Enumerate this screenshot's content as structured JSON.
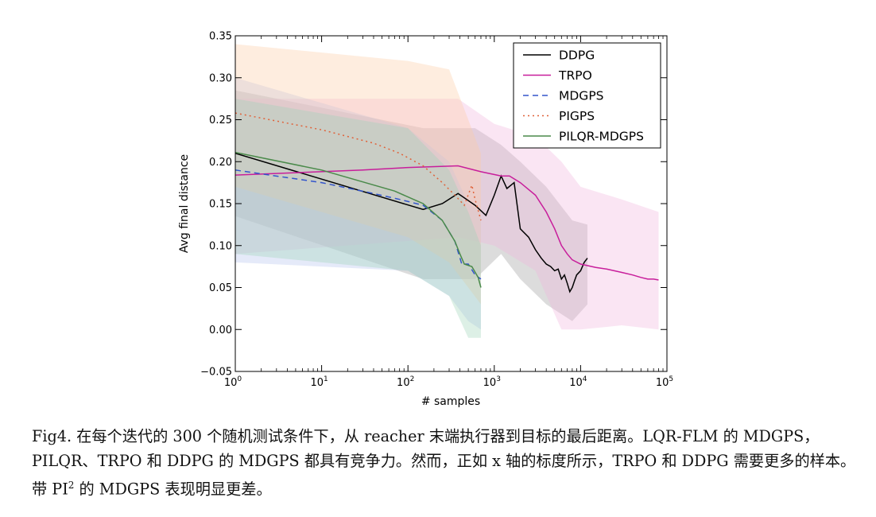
{
  "chart_data": {
    "type": "line",
    "title": "",
    "xlabel": "# samples",
    "ylabel": "Avg final distance",
    "xscale": "log",
    "xlim": [
      1,
      100000
    ],
    "ylim": [
      -0.05,
      0.35
    ],
    "grid": false,
    "legend_position": "top-right",
    "x_tick_labels": [
      {
        "base": "10",
        "exp": "0"
      },
      {
        "base": "10",
        "exp": "1"
      },
      {
        "base": "10",
        "exp": "2"
      },
      {
        "base": "10",
        "exp": "3"
      },
      {
        "base": "10",
        "exp": "4"
      },
      {
        "base": "10",
        "exp": "5"
      }
    ],
    "y_tick_labels": [
      "−0.05",
      "0.00",
      "0.05",
      "0.10",
      "0.15",
      "0.20",
      "0.25",
      "0.30",
      "0.35"
    ],
    "series": [
      {
        "name": "DDPG",
        "color": "#000000",
        "style": "solid",
        "band_color": "#9a9a9a",
        "points": [
          [
            1,
            0.21
          ],
          [
            150,
            0.143
          ],
          [
            250,
            0.15
          ],
          [
            380,
            0.162
          ],
          [
            600,
            0.148
          ],
          [
            800,
            0.136
          ],
          [
            1000,
            0.16
          ],
          [
            1200,
            0.183
          ],
          [
            1400,
            0.168
          ],
          [
            1700,
            0.175
          ],
          [
            2000,
            0.12
          ],
          [
            2500,
            0.11
          ],
          [
            3000,
            0.095
          ],
          [
            3500,
            0.085
          ],
          [
            4000,
            0.078
          ],
          [
            4500,
            0.075
          ],
          [
            5000,
            0.07
          ],
          [
            5500,
            0.072
          ],
          [
            6000,
            0.06
          ],
          [
            6500,
            0.065
          ],
          [
            7000,
            0.055
          ],
          [
            7500,
            0.045
          ],
          [
            8000,
            0.05
          ],
          [
            8500,
            0.058
          ],
          [
            9000,
            0.065
          ],
          [
            10000,
            0.07
          ],
          [
            11000,
            0.08
          ],
          [
            12000,
            0.085
          ]
        ],
        "band_points": [
          [
            1,
            0.285,
            0.135
          ],
          [
            150,
            0.24,
            0.06
          ],
          [
            600,
            0.24,
            0.06
          ],
          [
            1200,
            0.22,
            0.09
          ],
          [
            2000,
            0.2,
            0.06
          ],
          [
            4000,
            0.17,
            0.03
          ],
          [
            8000,
            0.13,
            0.01
          ],
          [
            12000,
            0.125,
            0.03
          ]
        ]
      },
      {
        "name": "TRPO",
        "color": "#c81e9b",
        "style": "solid",
        "band_color": "#f2b5de",
        "points": [
          [
            1,
            0.184
          ],
          [
            30,
            0.19
          ],
          [
            100,
            0.193
          ],
          [
            380,
            0.195
          ],
          [
            700,
            0.188
          ],
          [
            1200,
            0.183
          ],
          [
            1500,
            0.183
          ],
          [
            2000,
            0.175
          ],
          [
            3000,
            0.16
          ],
          [
            4000,
            0.14
          ],
          [
            5000,
            0.12
          ],
          [
            6000,
            0.1
          ],
          [
            7000,
            0.09
          ],
          [
            8000,
            0.083
          ],
          [
            10000,
            0.078
          ],
          [
            15000,
            0.074
          ],
          [
            20000,
            0.072
          ],
          [
            30000,
            0.068
          ],
          [
            40000,
            0.065
          ],
          [
            50000,
            0.062
          ],
          [
            60000,
            0.06
          ],
          [
            70000,
            0.06
          ],
          [
            80000,
            0.059
          ]
        ],
        "band_points": [
          [
            1,
            0.275,
            0.09
          ],
          [
            380,
            0.275,
            0.11
          ],
          [
            1000,
            0.245,
            0.1
          ],
          [
            3000,
            0.23,
            0.07
          ],
          [
            6000,
            0.2,
            0.0
          ],
          [
            10000,
            0.17,
            0.0
          ],
          [
            30000,
            0.155,
            0.005
          ],
          [
            80000,
            0.14,
            0.0
          ]
        ]
      },
      {
        "name": "MDGPS",
        "color": "#3355cc",
        "style": "dashed",
        "band_color": "#b4c2ee",
        "points": [
          [
            1,
            0.19
          ],
          [
            10,
            0.175
          ],
          [
            40,
            0.162
          ],
          [
            80,
            0.155
          ],
          [
            150,
            0.148
          ],
          [
            250,
            0.13
          ],
          [
            350,
            0.105
          ],
          [
            420,
            0.078
          ],
          [
            500,
            0.078
          ],
          [
            600,
            0.065
          ],
          [
            700,
            0.06
          ]
        ],
        "band_points": [
          [
            1,
            0.3,
            0.08
          ],
          [
            100,
            0.24,
            0.07
          ],
          [
            300,
            0.2,
            0.04
          ],
          [
            500,
            0.15,
            0.01
          ],
          [
            700,
            0.14,
            0.0
          ]
        ]
      },
      {
        "name": "PIGPS",
        "color": "#e0623a",
        "style": "dotted",
        "band_color": "#fbcaa4",
        "points": [
          [
            1,
            0.258
          ],
          [
            10,
            0.238
          ],
          [
            40,
            0.222
          ],
          [
            80,
            0.21
          ],
          [
            150,
            0.195
          ],
          [
            250,
            0.175
          ],
          [
            350,
            0.16
          ],
          [
            450,
            0.148
          ],
          [
            550,
            0.172
          ],
          [
            600,
            0.155
          ],
          [
            700,
            0.13
          ]
        ],
        "band_points": [
          [
            1,
            0.34,
            0.17
          ],
          [
            100,
            0.32,
            0.11
          ],
          [
            300,
            0.31,
            0.08
          ],
          [
            500,
            0.25,
            0.05
          ],
          [
            700,
            0.21,
            0.03
          ]
        ]
      },
      {
        "name": "PILQR-MDGPS",
        "color": "#4a8a4a",
        "style": "solid",
        "band_color": "#9fd3b7",
        "points": [
          [
            1,
            0.211
          ],
          [
            10,
            0.19
          ],
          [
            70,
            0.165
          ],
          [
            150,
            0.15
          ],
          [
            250,
            0.13
          ],
          [
            350,
            0.105
          ],
          [
            400,
            0.09
          ],
          [
            450,
            0.078
          ],
          [
            550,
            0.075
          ],
          [
            650,
            0.062
          ],
          [
            700,
            0.05
          ]
        ],
        "band_points": [
          [
            1,
            0.275,
            0.09
          ],
          [
            100,
            0.24,
            0.07
          ],
          [
            300,
            0.19,
            0.04
          ],
          [
            500,
            0.14,
            -0.01
          ],
          [
            700,
            0.1,
            -0.01
          ]
        ]
      }
    ]
  },
  "caption": {
    "fig_label": "Fig4.",
    "text_part1": " 在每个迭代的 300 个随机测试条件下，从 reacher 末端执行器到目标的最后距离。LQR-FLM 的 MDGPS，PILQR、TRPO 和 DDPG 的 MDGPS 都具有竞争力。然而，正如 x 轴的标度所示，TRPO 和 DDPG 需要更多的样本。带 PI",
    "superscript": "2",
    "text_part2": " 的 MDGPS 表现明显更差。"
  }
}
